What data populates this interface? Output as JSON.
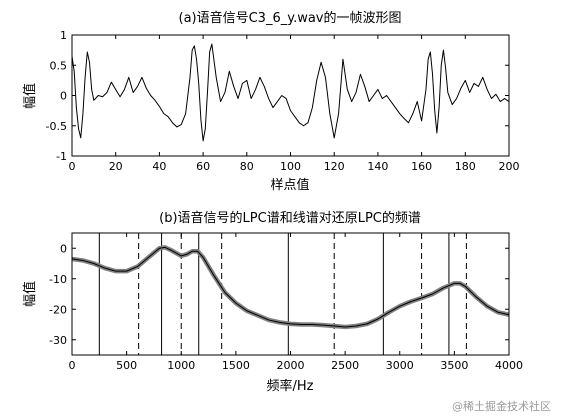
{
  "chart_data": [
    {
      "type": "line",
      "title": "(a)语音信号C3_6_y.wav的一帧波形图",
      "xlabel": "样点值",
      "ylabel": "幅值",
      "xlim": [
        0,
        200
      ],
      "ylim": [
        -1,
        1
      ],
      "xticks": [
        0,
        20,
        40,
        60,
        80,
        100,
        120,
        140,
        160,
        180,
        200
      ],
      "yticks": [
        -1,
        -0.5,
        0,
        0.5,
        1
      ],
      "grid": false,
      "series": [
        {
          "color": "#000000",
          "x": [
            0,
            1,
            2,
            3,
            4,
            5,
            6,
            7,
            8,
            9,
            10,
            12,
            14,
            16,
            18,
            20,
            22,
            24,
            26,
            28,
            30,
            32,
            34,
            36,
            38,
            40,
            42,
            44,
            46,
            48,
            50,
            52,
            54,
            55,
            56,
            57,
            58,
            59,
            60,
            61,
            62,
            63,
            64,
            66,
            68,
            70,
            72,
            74,
            76,
            78,
            80,
            82,
            84,
            86,
            88,
            90,
            92,
            94,
            96,
            98,
            100,
            102,
            104,
            106,
            108,
            110,
            112,
            114,
            116,
            118,
            120,
            122,
            124,
            126,
            128,
            130,
            132,
            134,
            136,
            138,
            140,
            142,
            144,
            146,
            148,
            150,
            152,
            154,
            156,
            158,
            160,
            162,
            163,
            164,
            165,
            166,
            167,
            168,
            169,
            170,
            171,
            172,
            174,
            176,
            178,
            180,
            182,
            184,
            186,
            188,
            190,
            192,
            194,
            196,
            198,
            200
          ],
          "y": [
            0.65,
            0.4,
            -0.2,
            -0.55,
            -0.7,
            -0.3,
            0.3,
            0.72,
            0.55,
            0.1,
            -0.08,
            0.0,
            -0.02,
            0.05,
            0.22,
            0.1,
            -0.02,
            0.1,
            0.3,
            0.05,
            0.15,
            0.3,
            0.12,
            0.0,
            -0.08,
            -0.18,
            -0.3,
            -0.35,
            -0.45,
            -0.52,
            -0.48,
            -0.3,
            0.3,
            0.75,
            0.82,
            0.6,
            0.2,
            -0.4,
            -0.75,
            -0.55,
            0.05,
            0.72,
            0.85,
            0.3,
            -0.1,
            0.05,
            0.4,
            0.15,
            -0.05,
            0.2,
            0.25,
            -0.05,
            0.1,
            0.3,
            0.15,
            -0.05,
            -0.2,
            -0.1,
            0.0,
            -0.05,
            -0.25,
            -0.35,
            -0.45,
            -0.5,
            -0.45,
            -0.2,
            0.25,
            0.55,
            0.3,
            -0.3,
            -0.7,
            -0.3,
            0.6,
            0.1,
            -0.1,
            0.05,
            0.35,
            0.15,
            -0.1,
            0.0,
            0.1,
            -0.05,
            0.0,
            -0.1,
            -0.2,
            -0.3,
            -0.38,
            -0.45,
            -0.3,
            -0.1,
            -0.42,
            0.1,
            0.6,
            0.72,
            0.35,
            -0.25,
            -0.62,
            -0.2,
            0.5,
            0.75,
            0.45,
            0.05,
            -0.15,
            -0.05,
            0.12,
            0.25,
            0.05,
            0.2,
            0.15,
            0.3,
            0.1,
            -0.05,
            0.02,
            -0.1,
            -0.05,
            -0.1
          ]
        }
      ]
    },
    {
      "type": "line",
      "title": "(b)语音信号的LPC谱和线谱对还原LPC的频谱",
      "xlabel": "频率/Hz",
      "ylabel": "幅值",
      "xlim": [
        0,
        4000
      ],
      "ylim": [
        -35,
        5
      ],
      "xticks": [
        0,
        500,
        1000,
        1500,
        2000,
        2500,
        3000,
        3500,
        4000
      ],
      "yticks": [
        -30,
        -20,
        -10,
        0
      ],
      "grid": false,
      "series": [
        {
          "color": "#808080",
          "x": [
            0,
            100,
            200,
            300,
            400,
            500,
            600,
            700,
            800,
            850,
            900,
            1000,
            1050,
            1100,
            1150,
            1200,
            1300,
            1400,
            1500,
            1600,
            1700,
            1800,
            1900,
            2000,
            2100,
            2200,
            2300,
            2400,
            2500,
            2600,
            2700,
            2800,
            2900,
            3000,
            3100,
            3200,
            3300,
            3400,
            3500,
            3550,
            3600,
            3700,
            3800,
            3900,
            4000
          ],
          "y": [
            -3.5,
            -4,
            -5,
            -6.5,
            -7.5,
            -7.5,
            -6,
            -3,
            0,
            0.3,
            -0.5,
            -2.5,
            -2,
            -1,
            -1,
            -3,
            -9,
            -14.5,
            -18,
            -20.5,
            -22,
            -23.5,
            -24.3,
            -24.8,
            -25,
            -25,
            -25.2,
            -25.5,
            -25.8,
            -25.5,
            -24.8,
            -23.2,
            -21,
            -19,
            -17.5,
            -16.3,
            -15,
            -13,
            -11.5,
            -11.5,
            -12.5,
            -16,
            -19,
            -21,
            -21.8
          ]
        },
        {
          "color": "#000000",
          "x": [
            0,
            100,
            200,
            300,
            400,
            500,
            600,
            700,
            800,
            850,
            900,
            1000,
            1050,
            1100,
            1150,
            1200,
            1300,
            1400,
            1500,
            1600,
            1700,
            1800,
            1900,
            2000,
            2100,
            2200,
            2300,
            2400,
            2500,
            2600,
            2700,
            2800,
            2900,
            3000,
            3100,
            3200,
            3300,
            3400,
            3500,
            3550,
            3600,
            3700,
            3800,
            3900,
            4000
          ],
          "y": [
            -3.5,
            -4,
            -5,
            -6.5,
            -7.5,
            -7.5,
            -6,
            -3,
            0,
            0.3,
            -0.5,
            -2.5,
            -2,
            -1,
            -1,
            -3,
            -9,
            -14.5,
            -18,
            -20.5,
            -22,
            -23.5,
            -24.3,
            -24.8,
            -25,
            -25,
            -25.2,
            -25.5,
            -25.8,
            -25.5,
            -24.8,
            -23.2,
            -21,
            -19,
            -17.5,
            -16.3,
            -15,
            -13,
            -11.5,
            -11.5,
            -12.5,
            -16,
            -19,
            -21,
            -21.8
          ]
        }
      ],
      "vlines_solid": [
        250,
        820,
        1160,
        1980,
        2850,
        3450
      ],
      "vlines_dashed": [
        610,
        1000,
        1370,
        2400,
        3200,
        3610
      ]
    }
  ],
  "watermark": "@稀土掘金技术社区"
}
